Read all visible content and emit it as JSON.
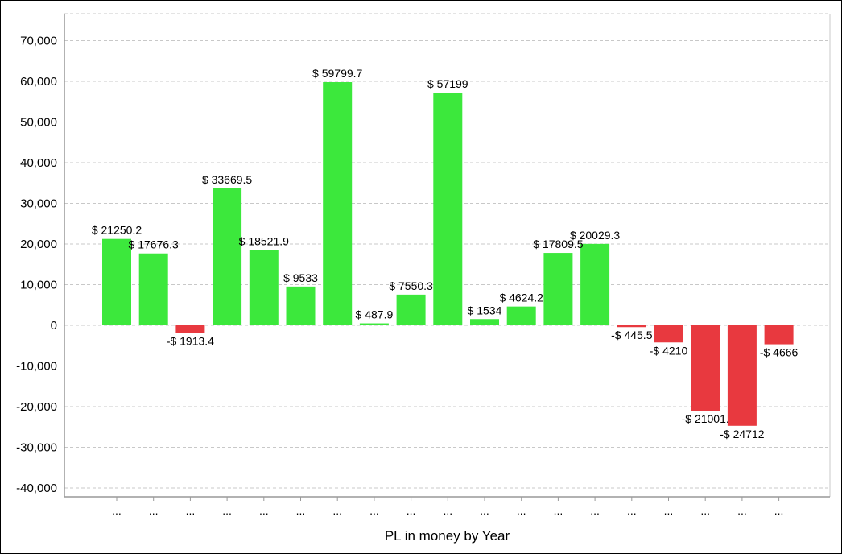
{
  "chart_data": {
    "type": "bar",
    "title": "",
    "xlabel": "PL in money by Year",
    "ylabel": "",
    "ylim": [
      -42000,
      75000
    ],
    "yticks": [
      70000,
      60000,
      50000,
      40000,
      30000,
      20000,
      10000,
      0,
      -10000,
      -20000,
      -30000,
      -40000
    ],
    "ytick_labels": [
      "70,000",
      "60,000",
      "50,000",
      "40,000",
      "30,000",
      "20,000",
      "10,000",
      "0",
      "-10,000",
      "-20,000",
      "-30,000",
      "-40,000"
    ],
    "categories": [
      "...",
      "...",
      "...",
      "...",
      "...",
      "...",
      "...",
      "...",
      "...",
      "...",
      "...",
      "...",
      "...",
      "...",
      "...",
      "...",
      "...",
      "...",
      "..."
    ],
    "values": [
      21250.2,
      17676.3,
      -1913.4,
      33669.5,
      18521.9,
      9533,
      59799.7,
      487.9,
      7550.3,
      57199,
      1534,
      4624.2,
      17809.5,
      20029.3,
      -445.5,
      -4210,
      -21001,
      -24712,
      -4666
    ],
    "data_labels": [
      "$ 21250.2",
      "$ 17676.3",
      "-$ 1913.4",
      "$ 33669.5",
      "$ 18521.9",
      "$ 9533",
      "$ 59799.7",
      "$ 487.9",
      "$ 7550.3",
      "$ 57199",
      "$ 1534",
      "$ 4624.2",
      "$ 17809.5",
      "$ 20029.3",
      "-$ 445.5",
      "-$ 4210",
      "-$ 21001.",
      "-$ 24712",
      "-$ 4666"
    ],
    "grid": "horizontal-dashed",
    "legend": "none",
    "colors": {
      "positive": "#3ce83c",
      "negative": "#e8393f",
      "grid": "#c8c8c8",
      "axis": "#999999"
    }
  }
}
